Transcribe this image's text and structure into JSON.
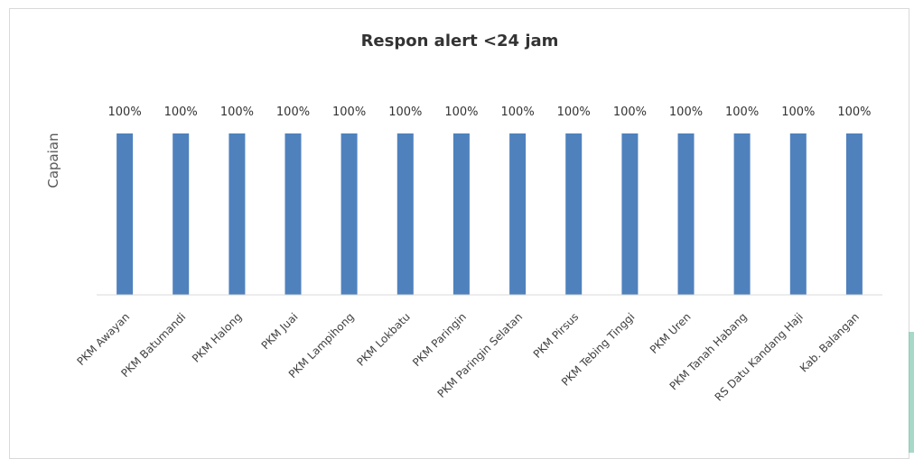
{
  "chart_data": {
    "type": "bar",
    "title": "Respon alert <24 jam",
    "ylabel": "Capaian",
    "xlabel": "",
    "ylim": [
      0,
      100
    ],
    "grid": false,
    "legend": "none",
    "value_suffix": "%",
    "bar_color": "#4f81bd",
    "categories": [
      "PKM Awayan",
      "PKM Batumandi",
      "PKM Halong",
      "PKM Juai",
      "PKM Lampihong",
      "PKM Lokbatu",
      "PKM Paringin",
      "PKM Paringin Selatan",
      "PKM Pirsus",
      "PKM Tebing Tinggi",
      "PKM Uren",
      "PKM Tanah Habang",
      "RS Datu Kandang Haji",
      "Kab. Balangan"
    ],
    "values": [
      100,
      100,
      100,
      100,
      100,
      100,
      100,
      100,
      100,
      100,
      100,
      100,
      100,
      100
    ],
    "data_labels": [
      "100%",
      "100%",
      "100%",
      "100%",
      "100%",
      "100%",
      "100%",
      "100%",
      "100%",
      "100%",
      "100%",
      "100%",
      "100%",
      "100%"
    ]
  }
}
